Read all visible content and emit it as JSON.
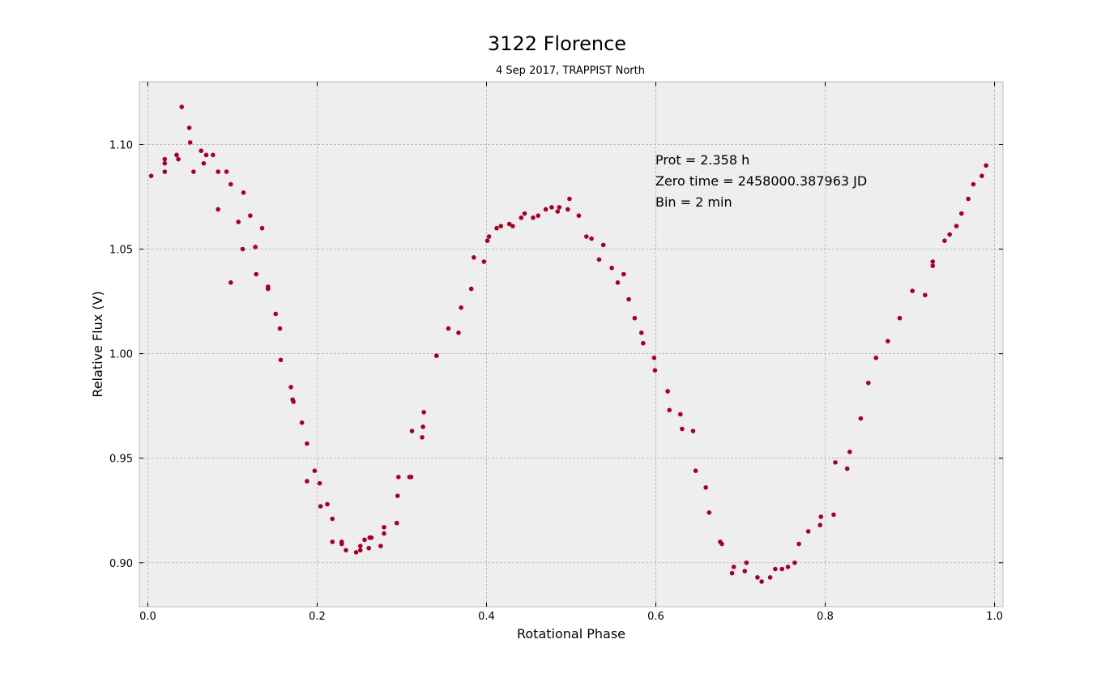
{
  "chart_data": {
    "type": "scatter",
    "title": "3122 Florence",
    "subtitle": "4 Sep 2017, TRAPPIST North",
    "xlabel": "Rotational Phase",
    "ylabel": "Relative Flux (V)",
    "xlim": [
      -0.01,
      1.01
    ],
    "ylim": [
      0.879,
      1.13
    ],
    "xticks": [
      0.0,
      0.2,
      0.4,
      0.6,
      0.8,
      1.0
    ],
    "xtick_labels": [
      "0.0",
      "0.2",
      "0.4",
      "0.6",
      "0.8",
      "1.0"
    ],
    "yticks": [
      0.9,
      0.95,
      1.0,
      1.05,
      1.1
    ],
    "ytick_labels": [
      "0.90",
      "0.95",
      "1.00",
      "1.05",
      "1.10"
    ],
    "grid": true,
    "marker_color": "#a50026",
    "background_color": "#eeeeee",
    "annotation": [
      "Prot = 2.358 h",
      "Zero time = 2458000.387963 JD",
      "Bin = 2 min"
    ],
    "series": [
      {
        "points": [
          [
            0.004,
            1.085
          ],
          [
            0.02,
            1.093
          ],
          [
            0.02,
            1.091
          ],
          [
            0.02,
            1.087
          ],
          [
            0.034,
            1.095
          ],
          [
            0.036,
            1.093
          ],
          [
            0.04,
            1.118
          ],
          [
            0.049,
            1.108
          ],
          [
            0.05,
            1.101
          ],
          [
            0.054,
            1.087
          ],
          [
            0.063,
            1.097
          ],
          [
            0.066,
            1.091
          ],
          [
            0.069,
            1.095
          ],
          [
            0.077,
            1.095
          ],
          [
            0.083,
            1.087
          ],
          [
            0.083,
            1.069
          ],
          [
            0.093,
            1.087
          ],
          [
            0.098,
            1.081
          ],
          [
            0.098,
            1.034
          ],
          [
            0.107,
            1.063
          ],
          [
            0.112,
            1.05
          ],
          [
            0.113,
            1.077
          ],
          [
            0.121,
            1.066
          ],
          [
            0.127,
            1.051
          ],
          [
            0.128,
            1.038
          ],
          [
            0.135,
            1.06
          ],
          [
            0.142,
            1.032
          ],
          [
            0.142,
            1.031
          ],
          [
            0.151,
            1.019
          ],
          [
            0.156,
            1.012
          ],
          [
            0.157,
            0.997
          ],
          [
            0.169,
            0.984
          ],
          [
            0.171,
            0.978
          ],
          [
            0.172,
            0.977
          ],
          [
            0.182,
            0.967
          ],
          [
            0.188,
            0.957
          ],
          [
            0.188,
            0.939
          ],
          [
            0.197,
            0.944
          ],
          [
            0.203,
            0.938
          ],
          [
            0.204,
            0.927
          ],
          [
            0.212,
            0.928
          ],
          [
            0.218,
            0.921
          ],
          [
            0.218,
            0.91
          ],
          [
            0.229,
            0.91
          ],
          [
            0.229,
            0.909
          ],
          [
            0.234,
            0.906
          ],
          [
            0.246,
            0.905
          ],
          [
            0.251,
            0.906
          ],
          [
            0.251,
            0.908
          ],
          [
            0.256,
            0.911
          ],
          [
            0.261,
            0.907
          ],
          [
            0.262,
            0.912
          ],
          [
            0.264,
            0.912
          ],
          [
            0.275,
            0.908
          ],
          [
            0.279,
            0.914
          ],
          [
            0.279,
            0.917
          ],
          [
            0.294,
            0.919
          ],
          [
            0.295,
            0.932
          ],
          [
            0.296,
            0.941
          ],
          [
            0.309,
            0.941
          ],
          [
            0.311,
            0.941
          ],
          [
            0.312,
            0.963
          ],
          [
            0.324,
            0.96
          ],
          [
            0.325,
            0.965
          ],
          [
            0.326,
            0.972
          ],
          [
            0.341,
            0.999
          ],
          [
            0.341,
            0.999
          ],
          [
            0.355,
            1.012
          ],
          [
            0.367,
            1.01
          ],
          [
            0.37,
            1.022
          ],
          [
            0.382,
            1.031
          ],
          [
            0.385,
            1.046
          ],
          [
            0.397,
            1.044
          ],
          [
            0.401,
            1.054
          ],
          [
            0.403,
            1.056
          ],
          [
            0.412,
            1.06
          ],
          [
            0.417,
            1.061
          ],
          [
            0.427,
            1.062
          ],
          [
            0.431,
            1.061
          ],
          [
            0.441,
            1.065
          ],
          [
            0.445,
            1.067
          ],
          [
            0.455,
            1.065
          ],
          [
            0.461,
            1.066
          ],
          [
            0.47,
            1.069
          ],
          [
            0.477,
            1.07
          ],
          [
            0.484,
            1.068
          ],
          [
            0.486,
            1.07
          ],
          [
            0.496,
            1.069
          ],
          [
            0.498,
            1.074
          ],
          [
            0.509,
            1.066
          ],
          [
            0.518,
            1.056
          ],
          [
            0.524,
            1.055
          ],
          [
            0.533,
            1.045
          ],
          [
            0.538,
            1.052
          ],
          [
            0.548,
            1.041
          ],
          [
            0.555,
            1.034
          ],
          [
            0.562,
            1.038
          ],
          [
            0.568,
            1.026
          ],
          [
            0.575,
            1.017
          ],
          [
            0.583,
            1.01
          ],
          [
            0.585,
            1.005
          ],
          [
            0.598,
            0.998
          ],
          [
            0.599,
            0.992
          ],
          [
            0.614,
            0.982
          ],
          [
            0.616,
            0.973
          ],
          [
            0.629,
            0.971
          ],
          [
            0.631,
            0.964
          ],
          [
            0.644,
            0.963
          ],
          [
            0.647,
            0.944
          ],
          [
            0.659,
            0.936
          ],
          [
            0.663,
            0.924
          ],
          [
            0.676,
            0.91
          ],
          [
            0.678,
            0.909
          ],
          [
            0.69,
            0.895
          ],
          [
            0.692,
            0.898
          ],
          [
            0.705,
            0.896
          ],
          [
            0.707,
            0.9
          ],
          [
            0.72,
            0.893
          ],
          [
            0.725,
            0.891
          ],
          [
            0.735,
            0.893
          ],
          [
            0.741,
            0.897
          ],
          [
            0.749,
            0.897
          ],
          [
            0.756,
            0.898
          ],
          [
            0.764,
            0.9
          ],
          [
            0.769,
            0.909
          ],
          [
            0.78,
            0.915
          ],
          [
            0.794,
            0.918
          ],
          [
            0.795,
            0.922
          ],
          [
            0.81,
            0.923
          ],
          [
            0.812,
            0.948
          ],
          [
            0.826,
            0.945
          ],
          [
            0.829,
            0.953
          ],
          [
            0.842,
            0.969
          ],
          [
            0.851,
            0.986
          ],
          [
            0.86,
            0.998
          ],
          [
            0.874,
            1.006
          ],
          [
            0.888,
            1.017
          ],
          [
            0.903,
            1.03
          ],
          [
            0.918,
            1.028
          ],
          [
            0.927,
            1.044
          ],
          [
            0.927,
            1.042
          ],
          [
            0.941,
            1.054
          ],
          [
            0.947,
            1.057
          ],
          [
            0.955,
            1.061
          ],
          [
            0.961,
            1.067
          ],
          [
            0.969,
            1.074
          ],
          [
            0.975,
            1.081
          ],
          [
            0.985,
            1.085
          ],
          [
            0.99,
            1.09
          ]
        ]
      }
    ]
  }
}
